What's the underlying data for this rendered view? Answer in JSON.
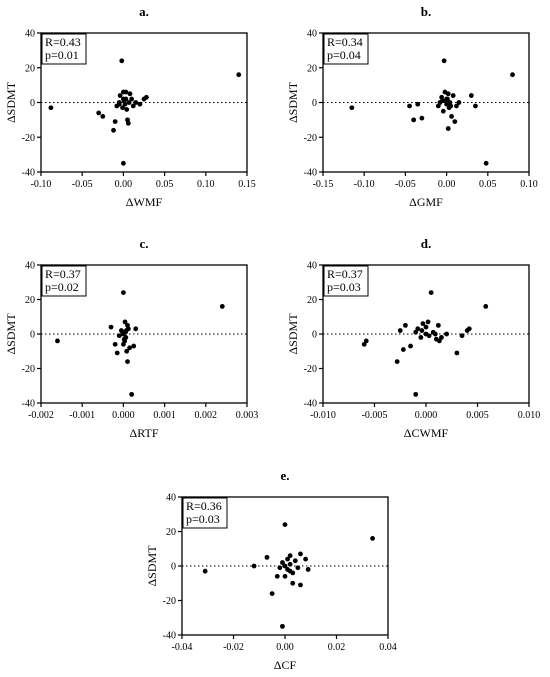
{
  "chart_data": [
    {
      "type": "scatter",
      "title": "a.",
      "xlabel": "ΔWMF",
      "ylabel": "ΔSDMT",
      "xlim": [
        -0.1,
        0.15
      ],
      "ylim": [
        -40,
        40
      ],
      "xticks": [
        -0.1,
        -0.05,
        0.0,
        0.05,
        0.1,
        0.15
      ],
      "xtick_labels": [
        "-0.10",
        "-0.05",
        "0.00",
        "0.05",
        "0.10",
        "0.15"
      ],
      "yticks": [
        -40,
        -20,
        0,
        20,
        40
      ],
      "ytick_labels": [
        "-40",
        "-20",
        "0",
        "20",
        "40"
      ],
      "reference_line_y": 0,
      "annotation": [
        "R=0.43",
        "p=0.01"
      ],
      "points": [
        [
          -0.088,
          -3
        ],
        [
          -0.03,
          -6
        ],
        [
          -0.025,
          -8
        ],
        [
          -0.012,
          -16
        ],
        [
          -0.01,
          -11
        ],
        [
          -0.008,
          -2
        ],
        [
          -0.005,
          0
        ],
        [
          -0.004,
          4
        ],
        [
          -0.002,
          24
        ],
        [
          -0.001,
          -3
        ],
        [
          0.0,
          6
        ],
        [
          0.001,
          1
        ],
        [
          0.002,
          -1
        ],
        [
          0.003,
          2
        ],
        [
          0.004,
          -4
        ],
        [
          0.005,
          -10
        ],
        [
          0.006,
          -12
        ],
        [
          0.007,
          0
        ],
        [
          0.008,
          5
        ],
        [
          0.01,
          2
        ],
        [
          0.012,
          -2
        ],
        [
          0.015,
          0
        ],
        [
          0.02,
          -1
        ],
        [
          0.025,
          2
        ],
        [
          0.028,
          3
        ],
        [
          0.0,
          -35
        ],
        [
          -0.005,
          -1
        ],
        [
          0.0,
          2
        ],
        [
          0.003,
          6
        ],
        [
          0.14,
          16
        ]
      ]
    },
    {
      "type": "scatter",
      "title": "b.",
      "xlabel": "ΔGMF",
      "ylabel": "ΔSDMT",
      "xlim": [
        -0.15,
        0.1
      ],
      "ylim": [
        -40,
        40
      ],
      "xticks": [
        -0.15,
        -0.1,
        -0.05,
        0.0,
        0.05,
        0.1
      ],
      "xtick_labels": [
        "-0.15",
        "-0.10",
        "-0.05",
        "0.00",
        "0.05",
        "0.10"
      ],
      "yticks": [
        -40,
        -20,
        0,
        20,
        40
      ],
      "ytick_labels": [
        "-40",
        "-20",
        "0",
        "20",
        "40"
      ],
      "reference_line_y": 0,
      "annotation": [
        "R=0.34",
        "p=0.04"
      ],
      "points": [
        [
          -0.115,
          -3
        ],
        [
          -0.045,
          -2
        ],
        [
          -0.04,
          -10
        ],
        [
          -0.035,
          -1
        ],
        [
          -0.03,
          -9
        ],
        [
          -0.01,
          -2
        ],
        [
          -0.008,
          0
        ],
        [
          -0.006,
          3
        ],
        [
          -0.004,
          -5
        ],
        [
          -0.003,
          24
        ],
        [
          -0.002,
          6
        ],
        [
          -0.001,
          1
        ],
        [
          0.0,
          -1
        ],
        [
          0.001,
          2
        ],
        [
          0.002,
          -15
        ],
        [
          0.003,
          -3
        ],
        [
          0.004,
          0
        ],
        [
          0.006,
          -8
        ],
        [
          0.008,
          4
        ],
        [
          0.01,
          -11
        ],
        [
          0.012,
          -2
        ],
        [
          0.015,
          0
        ],
        [
          0.03,
          4
        ],
        [
          0.035,
          -2
        ],
        [
          0.048,
          -35
        ],
        [
          0.08,
          16
        ],
        [
          0.005,
          -2
        ],
        [
          0.0,
          2
        ],
        [
          -0.005,
          1
        ],
        [
          0.002,
          5
        ]
      ]
    },
    {
      "type": "scatter",
      "title": "c.",
      "xlabel": "ΔRTF",
      "ylabel": "ΔSDMT",
      "xlim": [
        -0.002,
        0.003
      ],
      "ylim": [
        -40,
        40
      ],
      "xticks": [
        -0.002,
        -0.001,
        0.0,
        0.001,
        0.002,
        0.003
      ],
      "xtick_labels": [
        "-0.002",
        "-0.001",
        "0.000",
        "0.001",
        "0.002",
        "0.003"
      ],
      "yticks": [
        -40,
        -20,
        0,
        20,
        40
      ],
      "ytick_labels": [
        "-40",
        "-20",
        "0",
        "20",
        "40"
      ],
      "reference_line_y": 0,
      "annotation": [
        "R=0.37",
        "p=0.02"
      ],
      "points": [
        [
          -0.0016,
          -4
        ],
        [
          -0.0003,
          4
        ],
        [
          -0.0002,
          -6
        ],
        [
          -0.00015,
          -11
        ],
        [
          -0.0001,
          -1
        ],
        [
          -5e-05,
          2
        ],
        [
          0.0,
          24
        ],
        [
          0.0,
          0
        ],
        [
          2e-05,
          -3
        ],
        [
          4e-05,
          7
        ],
        [
          5e-05,
          1
        ],
        [
          6e-05,
          -2
        ],
        [
          8e-05,
          -10
        ],
        [
          0.0001,
          5
        ],
        [
          0.0001,
          -16
        ],
        [
          0.00012,
          3
        ],
        [
          0.00015,
          -8
        ],
        [
          0.0002,
          -35
        ],
        [
          0.00025,
          -7
        ],
        [
          0.0003,
          3
        ],
        [
          0.0024,
          16
        ],
        [
          3e-05,
          -4
        ],
        [
          -2e-05,
          1
        ],
        [
          7e-05,
          2
        ],
        [
          0.0,
          -6
        ]
      ]
    },
    {
      "type": "scatter",
      "title": "d.",
      "xlabel": "ΔCWMF",
      "ylabel": "ΔSDMT",
      "xlim": [
        -0.01,
        0.01
      ],
      "ylim": [
        -40,
        40
      ],
      "xticks": [
        -0.01,
        -0.005,
        0.0,
        0.005,
        0.01
      ],
      "xtick_labels": [
        "-0.010",
        "-0.005",
        "0.000",
        "0.005",
        "0.010"
      ],
      "yticks": [
        -40,
        -20,
        0,
        20,
        40
      ],
      "ytick_labels": [
        "-40",
        "-20",
        "0",
        "20",
        "40"
      ],
      "reference_line_y": 0,
      "annotation": [
        "R=0.37",
        "p=0.03"
      ],
      "points": [
        [
          -0.006,
          -6
        ],
        [
          -0.0058,
          -4
        ],
        [
          -0.0028,
          -16
        ],
        [
          -0.0025,
          2
        ],
        [
          -0.0022,
          -9
        ],
        [
          -0.002,
          5
        ],
        [
          -0.0015,
          -7
        ],
        [
          -0.001,
          -35
        ],
        [
          -0.0008,
          3
        ],
        [
          -0.0005,
          -2
        ],
        [
          -0.0003,
          6
        ],
        [
          0.0,
          0
        ],
        [
          0.0003,
          -1
        ],
        [
          0.0005,
          24
        ],
        [
          0.0007,
          1
        ],
        [
          0.001,
          -3
        ],
        [
          0.0012,
          5
        ],
        [
          0.0015,
          -2
        ],
        [
          0.002,
          0
        ],
        [
          0.003,
          -11
        ],
        [
          0.0035,
          -1
        ],
        [
          0.004,
          2
        ],
        [
          0.0042,
          3
        ],
        [
          0.0058,
          16
        ],
        [
          0.0,
          4
        ],
        [
          -0.0004,
          2
        ],
        [
          0.0002,
          7
        ],
        [
          0.0009,
          0
        ],
        [
          -0.001,
          1
        ],
        [
          0.0013,
          -4
        ]
      ]
    },
    {
      "type": "scatter",
      "title": "e.",
      "xlabel": "ΔCF",
      "ylabel": "ΔSDMT",
      "xlim": [
        -0.04,
        0.04
      ],
      "ylim": [
        -40,
        40
      ],
      "xticks": [
        -0.04,
        -0.02,
        0.0,
        0.02,
        0.04
      ],
      "xtick_labels": [
        "-0.04",
        "-0.02",
        "0.00",
        "0.02",
        "0.04"
      ],
      "yticks": [
        -40,
        -20,
        0,
        20,
        40
      ],
      "ytick_labels": [
        "-40",
        "-20",
        "0",
        "20",
        "40"
      ],
      "reference_line_y": 0,
      "annotation": [
        "R=0.36",
        "p=0.03"
      ],
      "points": [
        [
          -0.031,
          -3
        ],
        [
          -0.012,
          0
        ],
        [
          -0.007,
          5
        ],
        [
          -0.005,
          -16
        ],
        [
          -0.003,
          -6
        ],
        [
          -0.002,
          -1
        ],
        [
          -0.001,
          -35
        ],
        [
          0.0,
          24
        ],
        [
          0.0,
          0
        ],
        [
          0.001,
          -2
        ],
        [
          0.001,
          4
        ],
        [
          0.002,
          -3
        ],
        [
          0.002,
          1
        ],
        [
          0.003,
          -10
        ],
        [
          0.004,
          3
        ],
        [
          0.005,
          -1
        ],
        [
          0.006,
          -11
        ],
        [
          0.006,
          7
        ],
        [
          0.008,
          4
        ],
        [
          0.009,
          -2
        ],
        [
          0.034,
          16
        ],
        [
          -0.001,
          2
        ],
        [
          0.0,
          -6
        ],
        [
          0.003,
          -4
        ],
        [
          0.002,
          6
        ]
      ]
    }
  ]
}
